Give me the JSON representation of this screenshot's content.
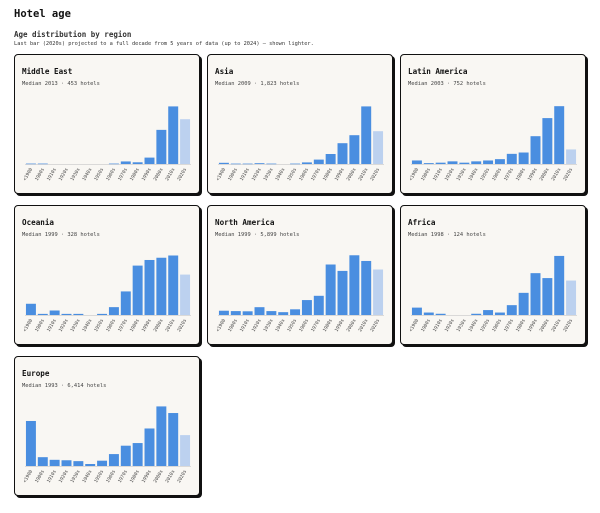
{
  "page": {
    "title": "Hotel age",
    "subtitle": "Age distribution by region",
    "note": "Last bar (2020s) projected to a full decade from 5 years of data (up to 2024) — shown lighter."
  },
  "colors": {
    "bar": "#4a8ee0",
    "bar_projected": "#bcd1ef",
    "axis": "#cfcfcf"
  },
  "chart_data": [
    {
      "type": "bar",
      "title": "Middle East",
      "subtitle": "Median 2013 · 453 hotels",
      "categories": [
        "<1900",
        "1900s",
        "1910s",
        "1920s",
        "1930s",
        "1940s",
        "1950s",
        "1960s",
        "1970s",
        "1980s",
        "1990s",
        "2000s",
        "2010s",
        "2020s"
      ],
      "values": [
        1,
        1,
        0,
        0,
        0,
        0,
        0,
        1,
        6,
        4,
        15,
        80,
        135,
        105
      ],
      "projected_index": 13,
      "ylim": [
        0,
        150
      ]
    },
    {
      "type": "bar",
      "title": "Asia",
      "subtitle": "Median 2009 · 1,823 hotels",
      "categories": [
        "<1900",
        "1900s",
        "1910s",
        "1920s",
        "1930s",
        "1940s",
        "1950s",
        "1960s",
        "1970s",
        "1980s",
        "1990s",
        "2000s",
        "2010s",
        "2020s"
      ],
      "values": [
        3,
        1,
        1,
        2,
        1,
        0,
        1,
        4,
        11,
        25,
        52,
        72,
        144,
        82
      ],
      "projected_index": 13,
      "ylim": [
        0,
        160
      ]
    },
    {
      "type": "bar",
      "title": "Latin America",
      "subtitle": "Median 2003 · 752 hotels",
      "categories": [
        "<1900",
        "1900s",
        "1910s",
        "1920s",
        "1930s",
        "1940s",
        "1950s",
        "1960s",
        "1970s",
        "1980s",
        "1990s",
        "2000s",
        "2010s",
        "2020s"
      ],
      "values": [
        8,
        2,
        3,
        6,
        3,
        6,
        8,
        11,
        23,
        26,
        63,
        104,
        131,
        33
      ],
      "projected_index": 13,
      "ylim": [
        0,
        145
      ]
    },
    {
      "type": "bar",
      "title": "Oceania",
      "subtitle": "Median 1999 · 328 hotels",
      "categories": [
        "<1900",
        "1900s",
        "1910s",
        "1920s",
        "1930s",
        "1940s",
        "1950s",
        "1960s",
        "1970s",
        "1980s",
        "1990s",
        "2000s",
        "2010s",
        "2020s"
      ],
      "values": [
        10,
        1,
        4,
        1,
        1,
        0,
        1,
        7,
        21,
        44,
        49,
        51,
        53,
        36
      ],
      "projected_index": 13,
      "ylim": [
        0,
        57
      ]
    },
    {
      "type": "bar",
      "title": "North America",
      "subtitle": "Median 1999 · 5,899 hotels",
      "categories": [
        "<1900",
        "1900s",
        "1910s",
        "1920s",
        "1930s",
        "1940s",
        "1950s",
        "1960s",
        "1970s",
        "1980s",
        "1990s",
        "2000s",
        "2010s",
        "2020s"
      ],
      "values": [
        60,
        55,
        52,
        110,
        55,
        40,
        80,
        210,
        270,
        710,
        620,
        840,
        760,
        640
      ],
      "projected_index": 13,
      "ylim": [
        0,
        900
      ]
    },
    {
      "type": "bar",
      "title": "Africa",
      "subtitle": "Median 1998 · 124 hotels",
      "categories": [
        "<1900",
        "1900s",
        "1910s",
        "1920s",
        "1930s",
        "1940s",
        "1950s",
        "1960s",
        "1970s",
        "1980s",
        "1990s",
        "2000s",
        "2010s",
        "2020s"
      ],
      "values": [
        6,
        2,
        1,
        0,
        0,
        1,
        4,
        2,
        8,
        18,
        34,
        30,
        48,
        28
      ],
      "projected_index": 13,
      "ylim": [
        0,
        52
      ]
    },
    {
      "type": "bar",
      "title": "Europe",
      "subtitle": "Median 1993 · 6,414 hotels",
      "categories": [
        "<1900",
        "1900s",
        "1910s",
        "1920s",
        "1930s",
        "1940s",
        "1950s",
        "1960s",
        "1970s",
        "1980s",
        "1990s",
        "2000s",
        "2010s",
        "2020s"
      ],
      "values": [
        1020,
        200,
        140,
        130,
        110,
        45,
        120,
        270,
        460,
        520,
        850,
        1350,
        1200,
        700
      ],
      "projected_index": 13,
      "ylim": [
        0,
        1450
      ]
    }
  ]
}
